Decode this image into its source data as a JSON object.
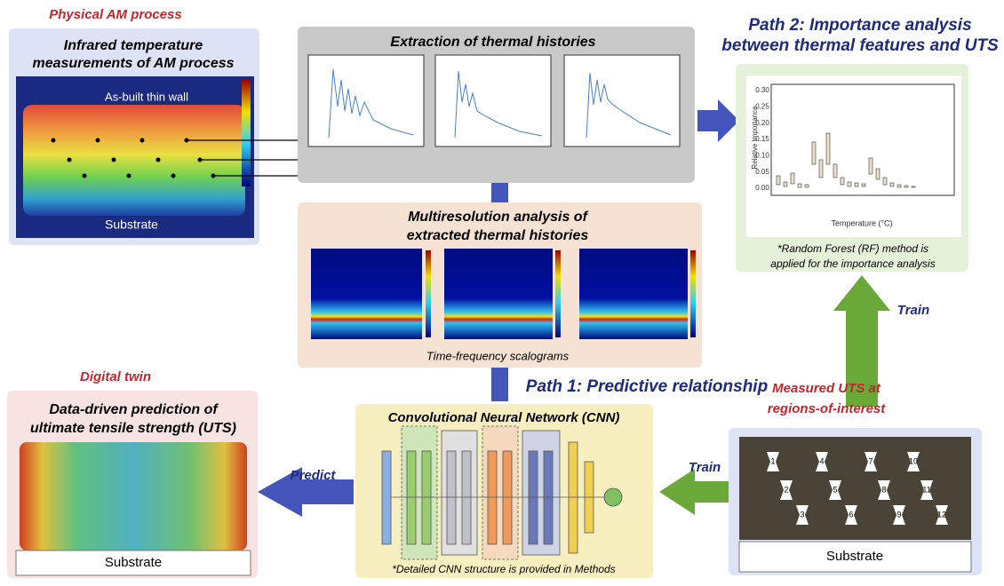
{
  "physical": {
    "heading": "Physical AM process",
    "title_lines": [
      "Infrared temperature",
      "measurements of AM process"
    ],
    "wall_label": "As-built thin wall",
    "substrate": "Substrate"
  },
  "extraction": {
    "title": "Extraction of thermal histories"
  },
  "multires": {
    "title_lines": [
      "Multiresolution analysis of",
      "extracted thermal histories"
    ],
    "caption": "Time-frequency scalograms"
  },
  "path2": {
    "title_lines": [
      "Path 2: Importance analysis",
      "between thermal features and UTS"
    ],
    "y_axis": "Relative Importance",
    "x_axis": "Temperature (°C)",
    "yticks": [
      "0.00",
      "0.05",
      "0.10",
      "0.15",
      "0.20",
      "0.25",
      "0.30"
    ],
    "note_lines": [
      "*Random Forest (RF) method is",
      "applied for the importance analysis"
    ]
  },
  "path1": {
    "title": "Path 1: Predictive relationship"
  },
  "cnn": {
    "title": "Convolutional Neural Network (CNN)",
    "note": "*Detailed CNN structure is provided in Methods"
  },
  "digital": {
    "heading": "Digital twin",
    "title_lines": [
      "Data-driven prediction of",
      "ultimate tensile strength (UTS)"
    ],
    "substrate": "Substrate"
  },
  "measured": {
    "title_lines": [
      "Measured UTS at",
      "regions-of-interest"
    ],
    "specimens": [
      "1",
      "2",
      "3",
      "4",
      "5",
      "6",
      "7",
      "8",
      "9",
      "10",
      "11",
      "12"
    ],
    "substrate": "Substrate"
  },
  "arrows": {
    "train_up": "Train",
    "train_left": "Train",
    "predict": "Predict"
  }
}
